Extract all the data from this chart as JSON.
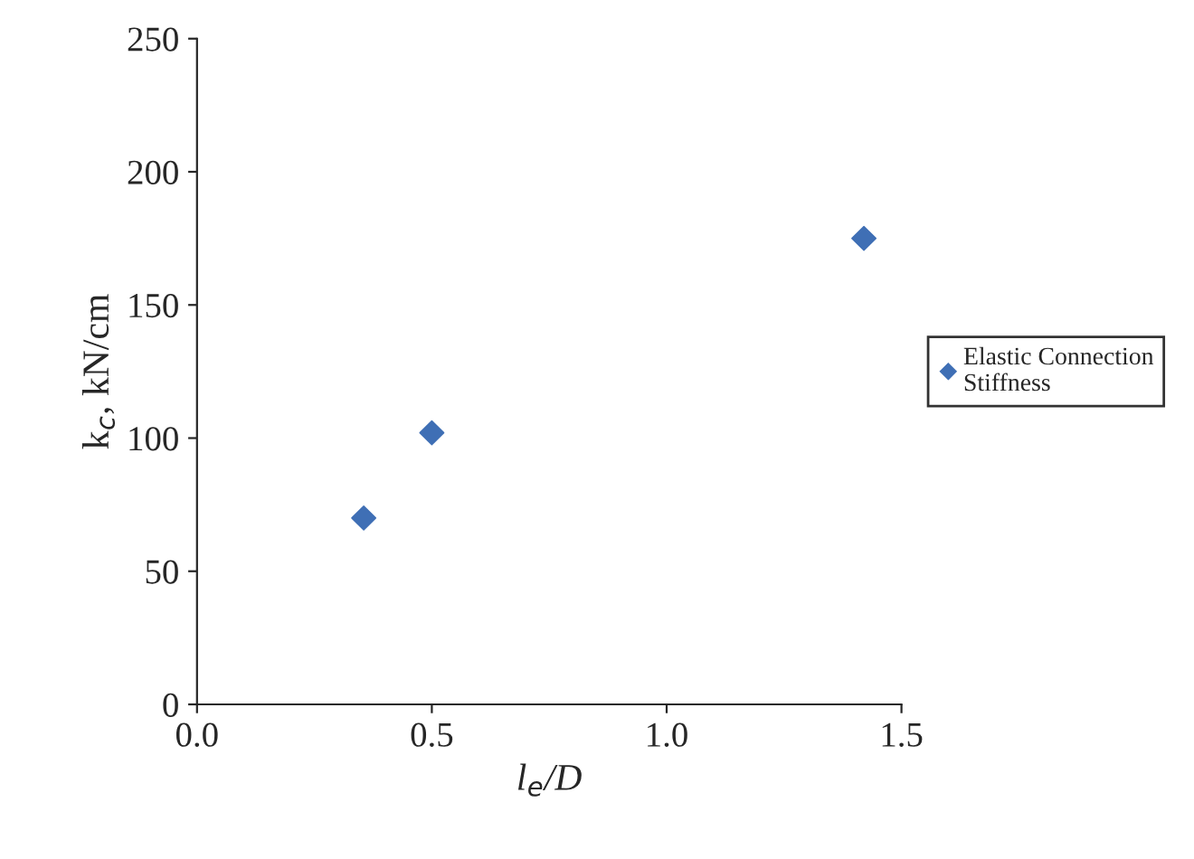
{
  "chart_data": {
    "type": "scatter",
    "xlabel": "l$_{e}$/D",
    "ylabel": "k$_{c}$, kN/cm",
    "x": [
      0.355,
      0.5,
      1.42
    ],
    "series": [
      {
        "name": "Elastic Connection Stiffness",
        "color": "#3f6fb5",
        "values": [
          70,
          102,
          175
        ]
      }
    ],
    "xlim": [
      0,
      1.5
    ],
    "xticks": [
      {
        "value": 0,
        "label": "0.0"
      },
      0.5,
      {
        "value": 1,
        "label": "1.0"
      },
      1.5
    ],
    "ylim": [
      0,
      250
    ],
    "yticks": [
      0,
      50,
      100,
      150,
      200,
      250
    ],
    "marker": "diamond",
    "legend": "right",
    "grid": false
  }
}
